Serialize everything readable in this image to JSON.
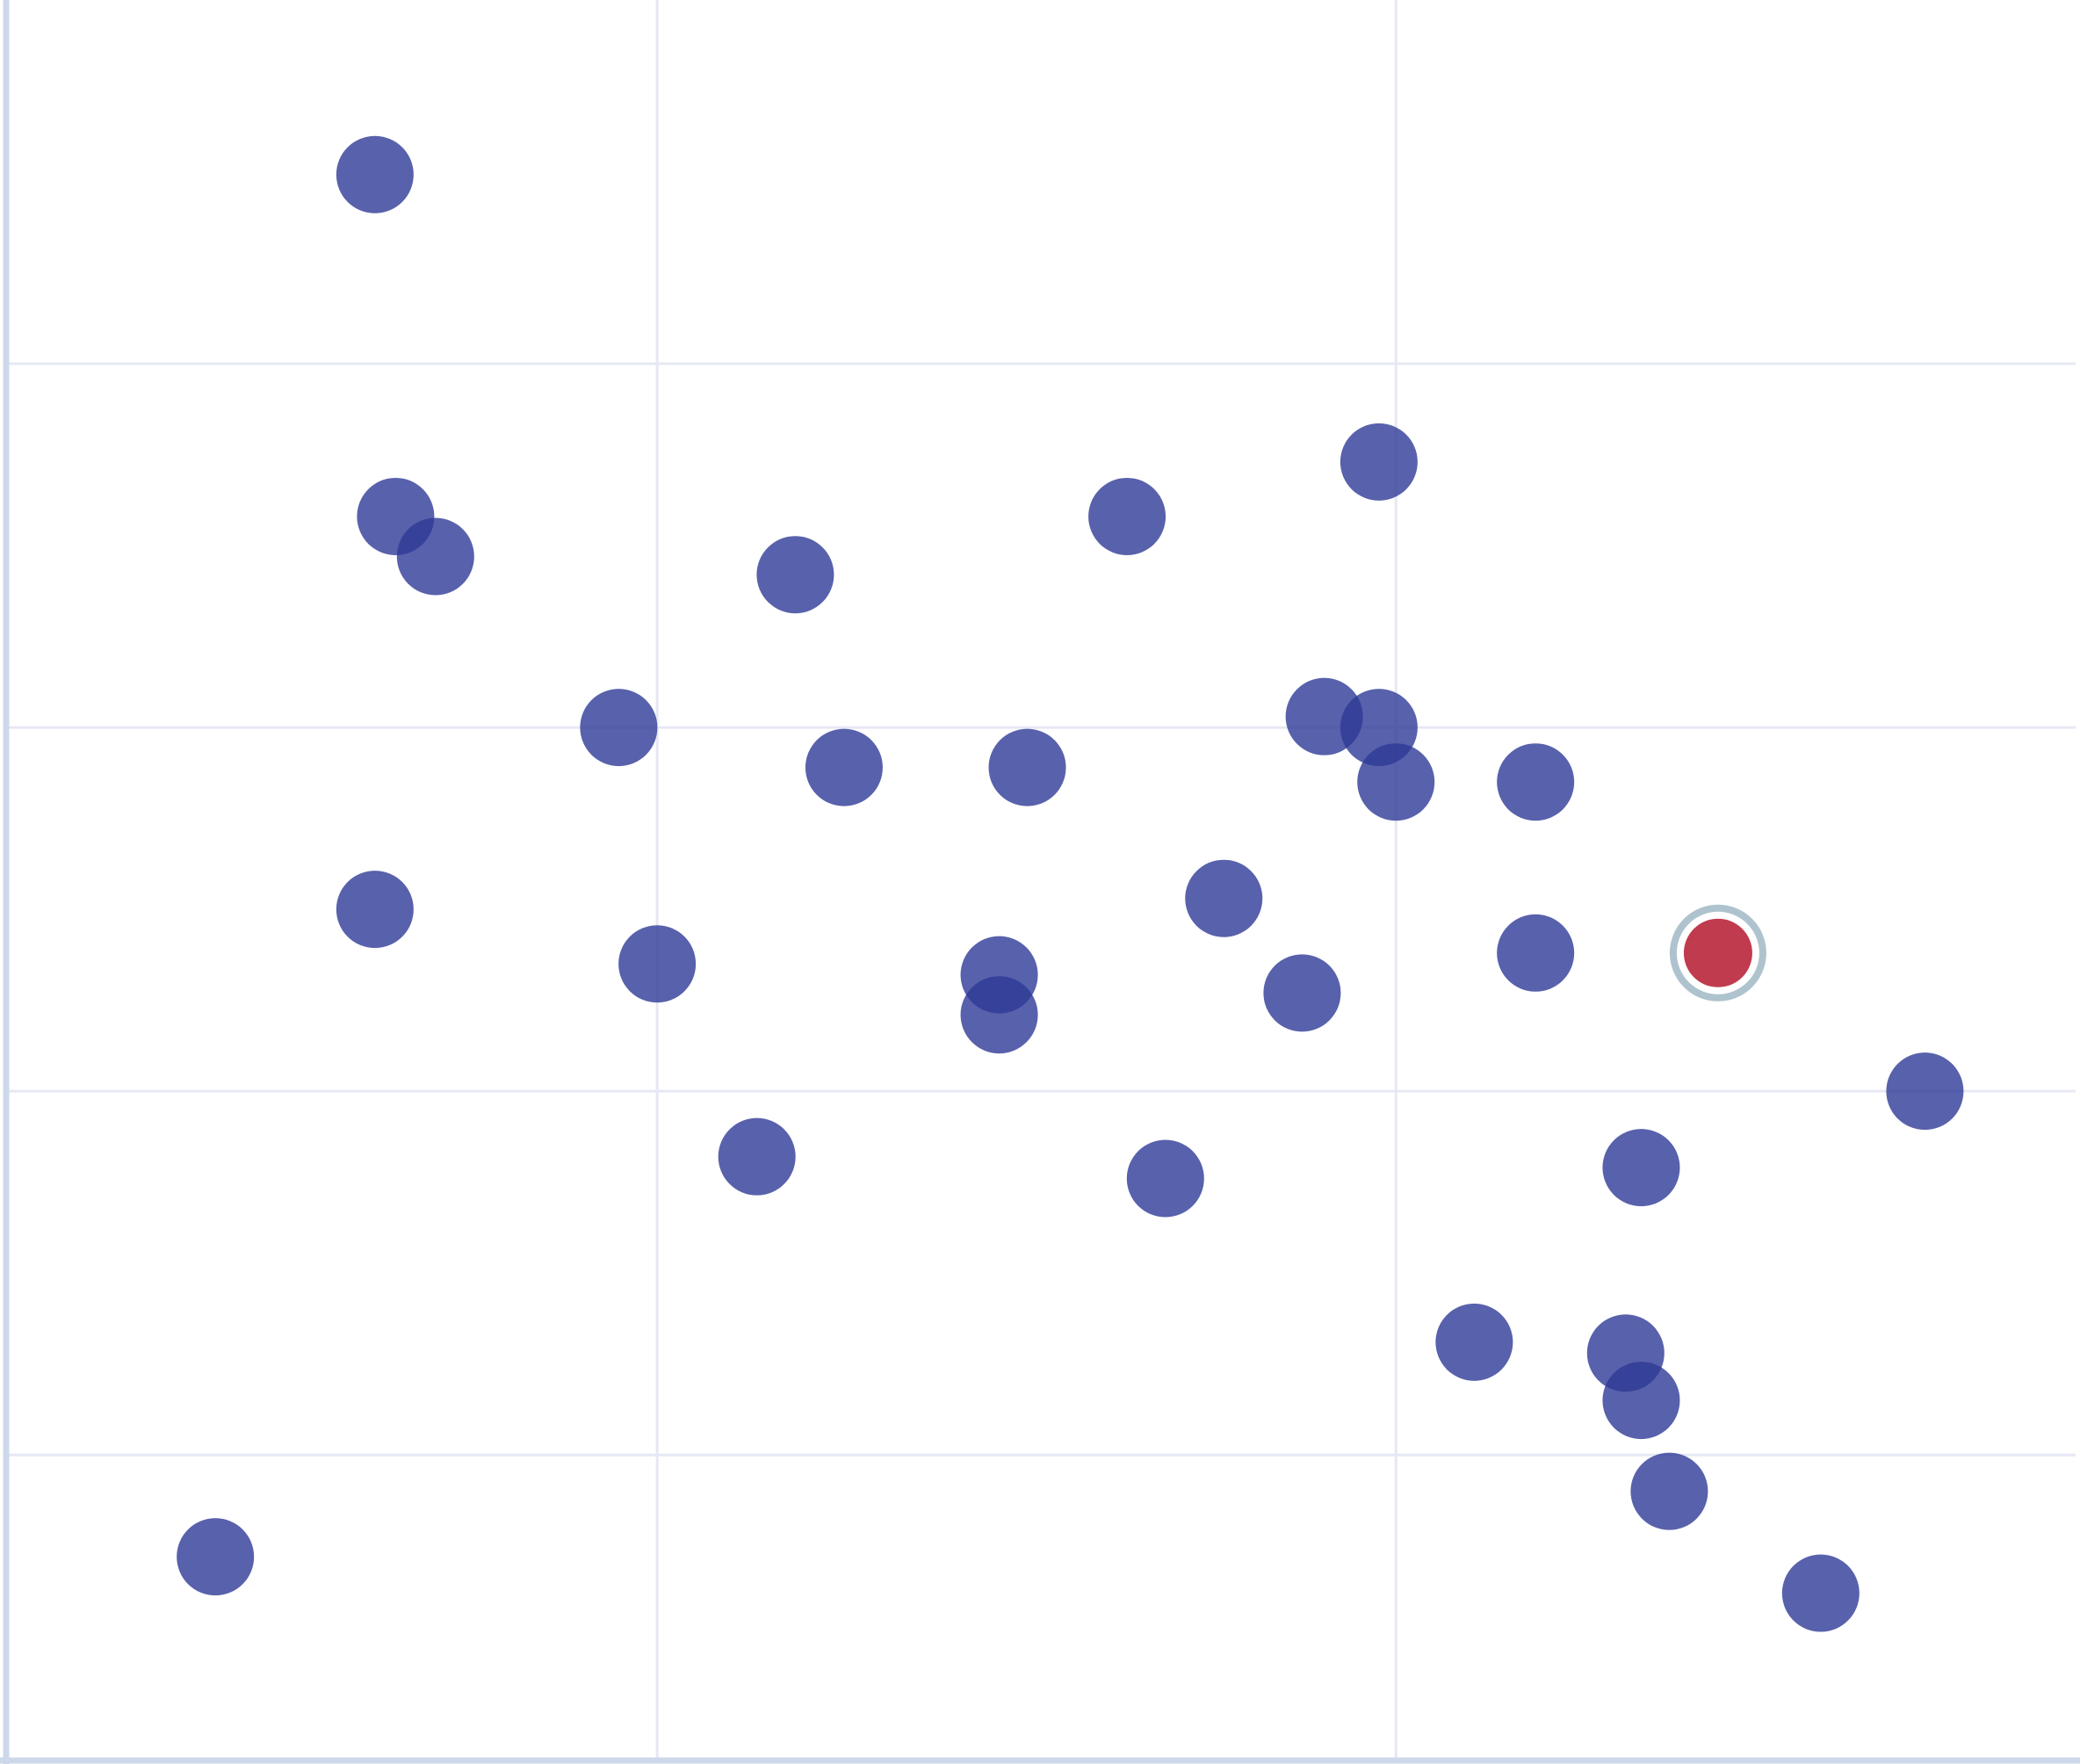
{
  "chart_data": {
    "type": "scatter",
    "title": "",
    "xlabel": "",
    "ylabel": "",
    "xlim": [
      0.12,
      2.92
    ],
    "ylim": [
      0.16,
      5.0
    ],
    "x_gridlines": [
      1,
      2
    ],
    "y_gridlines": [
      1,
      2,
      3,
      4
    ],
    "grid": true,
    "colors": {
      "point": "#2e3a96",
      "highlight": "#c03b4e",
      "highlight_ring": "#aec3cd",
      "axis": "#cdd8ea",
      "grid": "#e6e8f4"
    },
    "points": [
      {
        "x": 0.618,
        "y": 4.52
      },
      {
        "x": 0.646,
        "y": 3.58
      },
      {
        "x": 0.7,
        "y": 3.47
      },
      {
        "x": 1.187,
        "y": 3.42
      },
      {
        "x": 1.636,
        "y": 3.58
      },
      {
        "x": 1.977,
        "y": 3.73
      },
      {
        "x": 0.948,
        "y": 3.0
      },
      {
        "x": 1.253,
        "y": 2.89
      },
      {
        "x": 1.501,
        "y": 2.89
      },
      {
        "x": 1.903,
        "y": 3.03
      },
      {
        "x": 1.977,
        "y": 3.0
      },
      {
        "x": 2.0,
        "y": 2.85
      },
      {
        "x": 2.189,
        "y": 2.85
      },
      {
        "x": 0.618,
        "y": 2.5
      },
      {
        "x": 1.0,
        "y": 2.35
      },
      {
        "x": 1.463,
        "y": 2.32
      },
      {
        "x": 1.463,
        "y": 2.21
      },
      {
        "x": 1.767,
        "y": 2.53
      },
      {
        "x": 1.873,
        "y": 2.27
      },
      {
        "x": 2.189,
        "y": 2.38
      },
      {
        "x": 2.716,
        "y": 2.0
      },
      {
        "x": 1.135,
        "y": 1.82
      },
      {
        "x": 1.688,
        "y": 1.76
      },
      {
        "x": 2.332,
        "y": 1.79
      },
      {
        "x": 2.106,
        "y": 1.31
      },
      {
        "x": 2.311,
        "y": 1.28
      },
      {
        "x": 2.332,
        "y": 1.15
      },
      {
        "x": 2.37,
        "y": 0.9
      },
      {
        "x": 0.402,
        "y": 0.72
      },
      {
        "x": 2.575,
        "y": 0.62
      }
    ],
    "highlighted_point": {
      "x": 2.436,
      "y": 2.38
    }
  }
}
